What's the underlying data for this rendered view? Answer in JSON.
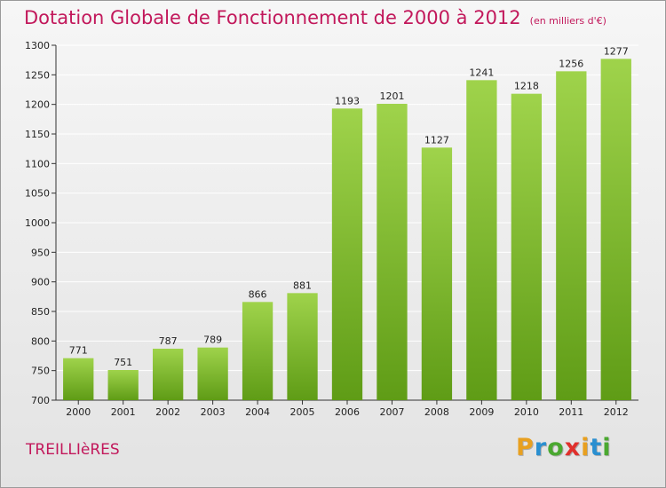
{
  "chart_data": {
    "type": "bar",
    "title": "Dotation Globale de Fonctionnement de 2000 à 2012",
    "subtitle": "(en milliers d'€)",
    "categories": [
      "2000",
      "2001",
      "2002",
      "2003",
      "2004",
      "2005",
      "2006",
      "2007",
      "2008",
      "2009",
      "2010",
      "2011",
      "2012"
    ],
    "values": [
      771,
      751,
      787,
      789,
      866,
      881,
      1193,
      1201,
      1127,
      1241,
      1218,
      1256,
      1277
    ],
    "ylim": [
      700,
      1300
    ],
    "yticks": [
      700,
      750,
      800,
      850,
      900,
      950,
      1000,
      1050,
      1100,
      1150,
      1200,
      1250,
      1300
    ],
    "grid": true,
    "bar_colors": {
      "top": "#9fd34b",
      "bottom": "#5f9c16"
    },
    "xlabel": "",
    "ylabel": ""
  },
  "footer": {
    "commune": "TREILLIèRES",
    "brand": "Proxiti",
    "brand_colors": [
      "#e8a020",
      "#2a8fd0",
      "#4aa830",
      "#e0302c",
      "#e8a020",
      "#2a8fd0",
      "#4aa830"
    ]
  },
  "colors": {
    "accent": "#c2185b",
    "grid": "#ffffff",
    "axis": "#333333"
  }
}
